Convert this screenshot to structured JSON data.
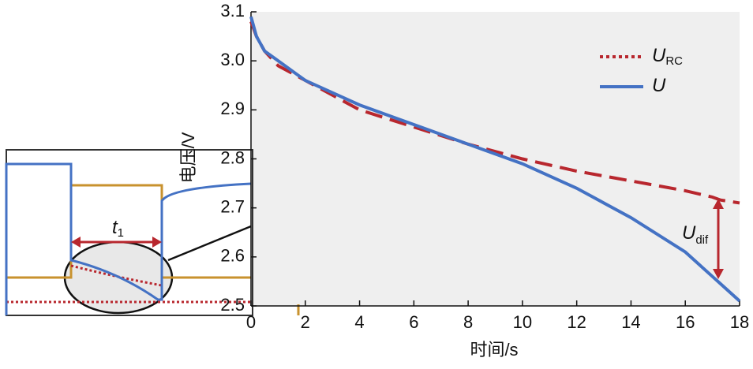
{
  "chart_data": {
    "type": "line",
    "x_label": "时间/s",
    "y_label": "电压/V",
    "xlim": [
      0,
      18
    ],
    "xticks": [
      0,
      2,
      4,
      6,
      8,
      10,
      12,
      14,
      16,
      18
    ],
    "ylim": [
      2.5,
      3.1
    ],
    "yticks": [
      2.5,
      2.6,
      2.7,
      2.8,
      2.9,
      {
        "value": 3,
        "label": "3.0"
      },
      3.1
    ],
    "x": [
      0,
      0.2,
      0.5,
      1,
      2,
      4,
      6,
      8,
      10,
      12,
      14,
      16,
      17,
      17.3,
      18
    ],
    "series": [
      {
        "name": "U",
        "name_sub": "RC",
        "color": "#b8272e",
        "dash": true,
        "values": [
          3.08,
          3.05,
          3.02,
          2.99,
          2.96,
          2.9,
          2.865,
          2.83,
          2.8,
          2.775,
          2.755,
          2.735,
          2.722,
          2.716,
          2.71
        ]
      },
      {
        "name": "U",
        "color": "#4472c4",
        "dash": false,
        "values": [
          3.09,
          3.05,
          3.02,
          3.0,
          2.96,
          2.91,
          2.87,
          2.83,
          2.79,
          2.74,
          2.68,
          2.61,
          2.56,
          2.545,
          2.51
        ]
      }
    ],
    "annotations": {
      "dif": {
        "text": "U",
        "sub": "dif"
      },
      "t1": {
        "text": "t",
        "sub": "1"
      }
    }
  }
}
